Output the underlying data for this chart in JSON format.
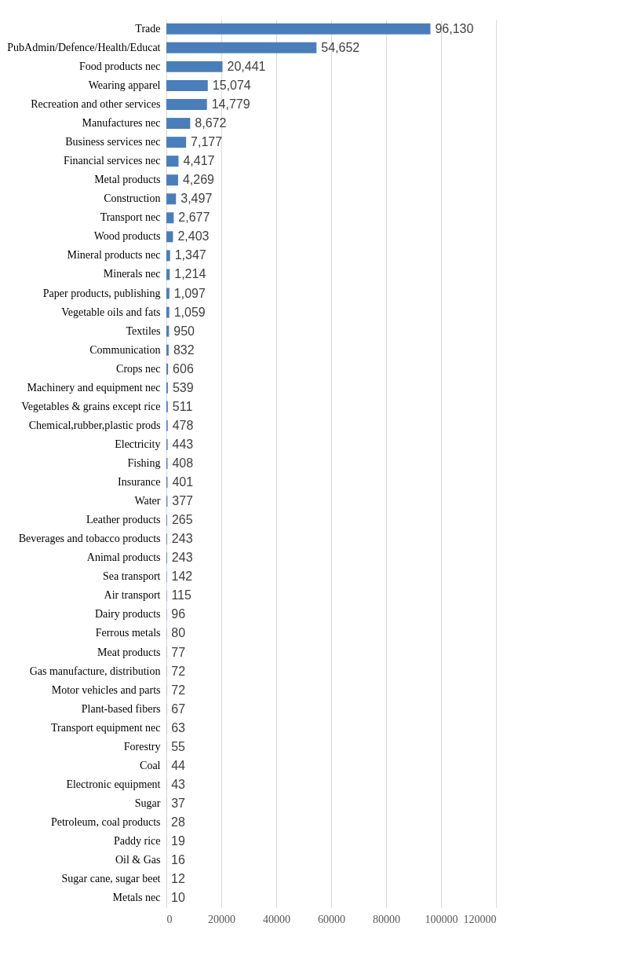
{
  "chart_data": {
    "type": "bar",
    "orientation": "horizontal",
    "categories": [
      "Trade",
      "PubAdmin/Defence/Health/Educat",
      "Food products nec",
      "Wearing apparel",
      "Recreation and other services",
      "Manufactures nec",
      "Business services nec",
      "Financial services nec",
      "Metal products",
      "Construction",
      "Transport nec",
      "Wood products",
      "Mineral products nec",
      "Minerals nec",
      "Paper products, publishing",
      "Vegetable oils and fats",
      "Textiles",
      "Communication",
      "Crops nec",
      "Machinery and equipment nec",
      "Vegetables & grains except rice",
      "Chemical,rubber,plastic prods",
      "Electricity",
      "Fishing",
      "Insurance",
      "Water",
      "Leather products",
      "Beverages and tobacco products",
      "Animal products",
      "Sea transport",
      "Air transport",
      "Dairy products",
      "Ferrous metals",
      "Meat products",
      "Gas manufacture, distribution",
      "Motor vehicles and parts",
      "Plant-based fibers",
      "Transport equipment nec",
      "Forestry",
      "Coal",
      "Electronic equipment",
      "Sugar",
      "Petroleum, coal products",
      "Paddy rice",
      "Oil & Gas",
      "Sugar cane, sugar beet",
      "Metals nec"
    ],
    "values": [
      96130,
      54652,
      20441,
      15074,
      14779,
      8672,
      7177,
      4417,
      4269,
      3497,
      2677,
      2403,
      1347,
      1214,
      1097,
      1059,
      950,
      832,
      606,
      539,
      511,
      478,
      443,
      408,
      401,
      377,
      265,
      243,
      243,
      142,
      115,
      96,
      80,
      77,
      72,
      72,
      67,
      63,
      55,
      44,
      43,
      37,
      28,
      19,
      16,
      12,
      10
    ],
    "color": "#4a7ebb",
    "xlim": [
      0,
      120000
    ],
    "xticks": [
      0,
      20000,
      40000,
      60000,
      80000,
      100000,
      120000
    ],
    "grid": "x",
    "value_labels": [
      "96,130",
      "54,652",
      "20,441",
      "15,074",
      "14,779",
      "8,672",
      "7,177",
      "4,417",
      "4,269",
      "3,497",
      "2,677",
      "2,403",
      "1,347",
      "1,214",
      "1,097",
      "1,059",
      "950",
      "832",
      "606",
      "539",
      "511",
      "478",
      "443",
      "408",
      "401",
      "377",
      "265",
      "243",
      "243",
      "142",
      "115",
      "96",
      "80",
      "77",
      "72",
      "72",
      "67",
      "63",
      "55",
      "44",
      "43",
      "37",
      "28",
      "19",
      "16",
      "12",
      "10"
    ]
  }
}
